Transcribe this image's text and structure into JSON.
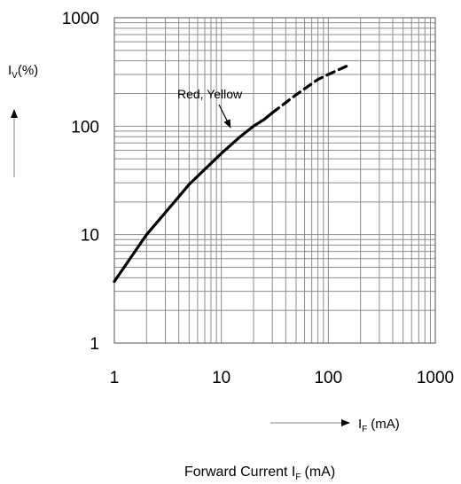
{
  "chart_data": {
    "type": "line",
    "scale": {
      "x": "log",
      "y": "log"
    },
    "grid": true,
    "xlim": [
      1,
      1000
    ],
    "ylim": [
      1,
      1000
    ],
    "x_ticks": [
      "1",
      "10",
      "100",
      "1000"
    ],
    "y_ticks": [
      "1",
      "10",
      "100",
      "1000"
    ],
    "y_axis_label": {
      "main": "I",
      "sub": "V",
      "unit": "(%)"
    },
    "x_axis_label": {
      "main": "I",
      "sub": "F",
      "unit": "(mA)"
    },
    "caption": {
      "main": "Forward Current I",
      "sub": "F",
      "unit": "(mA)"
    },
    "annotation": "Red, Yellow",
    "series": [
      {
        "name": "Red, Yellow",
        "style": "solid",
        "x": [
          1,
          2,
          3,
          5,
          7,
          10,
          15,
          20,
          25,
          30
        ],
        "y": [
          3.7,
          10,
          16,
          29,
          40,
          56,
          80,
          100,
          115,
          133
        ]
      },
      {
        "name": "Red, Yellow",
        "style": "dashed",
        "x": [
          30,
          50,
          80,
          100,
          150
        ],
        "y": [
          133,
          195,
          270,
          300,
          360
        ]
      }
    ]
  }
}
